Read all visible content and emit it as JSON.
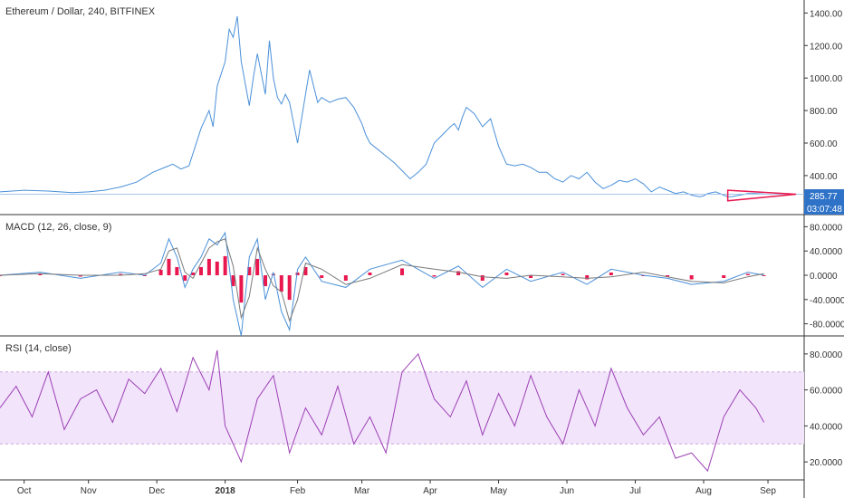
{
  "chart_data": [
    {
      "type": "line",
      "pane": "price",
      "title": "Ethereum / Dollar, 240, BITFINEX",
      "y_ticks": [
        "1400.00",
        "1200.00",
        "1000.00",
        "800.00",
        "600.00",
        "400.00"
      ],
      "ylim": [
        160,
        1480
      ],
      "last_price": "285.77",
      "countdown": "03:07:48",
      "colors": {
        "line": "#4a90d9",
        "last_badge": "#2f73c8",
        "triangle": "#e8184f"
      },
      "series": [
        {
          "x": [
            0,
            0.03,
            0.06,
            0.09,
            0.11,
            0.13,
            0.15,
            0.17,
            0.19,
            0.205,
            0.215,
            0.225,
            0.235,
            0.25,
            0.26,
            0.265,
            0.27,
            0.28,
            0.285,
            0.29,
            0.295,
            0.3,
            0.31,
            0.315,
            0.32,
            0.33,
            0.335,
            0.34,
            0.345,
            0.35,
            0.355,
            0.36,
            0.37,
            0.38,
            0.385,
            0.395,
            0.4,
            0.41,
            0.42,
            0.43,
            0.44,
            0.45,
            0.455,
            0.46,
            0.47,
            0.48,
            0.49,
            0.5,
            0.51,
            0.52,
            0.53,
            0.54,
            0.55,
            0.56,
            0.565,
            0.57,
            0.575,
            0.58,
            0.59,
            0.6,
            0.61,
            0.62,
            0.63,
            0.64,
            0.65,
            0.66,
            0.67,
            0.68,
            0.69,
            0.7,
            0.71,
            0.72,
            0.73,
            0.74,
            0.75,
            0.76,
            0.77,
            0.78,
            0.79,
            0.8,
            0.81,
            0.82,
            0.83,
            0.84,
            0.85,
            0.86,
            0.87,
            0.875,
            0.88,
            0.89,
            0.9,
            0.905,
            0.91,
            0.92,
            0.93,
            0.94,
            0.95
          ],
          "values": [
            300,
            310,
            305,
            295,
            300,
            310,
            330,
            360,
            420,
            450,
            470,
            440,
            460,
            690,
            800,
            700,
            950,
            1100,
            1300,
            1250,
            1380,
            1100,
            830,
            1000,
            1150,
            900,
            1230,
            1000,
            880,
            840,
            900,
            850,
            600,
            900,
            1050,
            850,
            880,
            850,
            870,
            880,
            820,
            720,
            650,
            600,
            560,
            520,
            480,
            430,
            380,
            420,
            470,
            600,
            650,
            700,
            720,
            680,
            760,
            820,
            780,
            700,
            750,
            580,
            470,
            460,
            470,
            450,
            420,
            420,
            380,
            360,
            400,
            380,
            420,
            360,
            320,
            340,
            370,
            360,
            380,
            350,
            300,
            330,
            310,
            290,
            300,
            280,
            270,
            275,
            290,
            300,
            280,
            270,
            270,
            280,
            290,
            290,
            286
          ]
        }
      ]
    },
    {
      "type": "line",
      "pane": "macd",
      "title": "MACD (12, 26, close, 9)",
      "y_ticks": [
        "80.0000",
        "40.0000",
        "0.0000",
        "-40.0000",
        "-80.0000"
      ],
      "ylim": [
        -100,
        100
      ],
      "colors": {
        "macd": "#4a90d9",
        "signal": "#7a7a7a",
        "histogram": "#e8184f"
      },
      "series": [
        {
          "name": "",
          "x": [
            0,
            0.05,
            0.1,
            0.15,
            0.18,
            0.2,
            0.21,
            0.22,
            0.23,
            0.24,
            0.25,
            0.26,
            0.27,
            0.28,
            0.29,
            0.3,
            0.31,
            0.32,
            0.33,
            0.34,
            0.35,
            0.36,
            0.37,
            0.38,
            0.4,
            0.43,
            0.46,
            0.5,
            0.54,
            0.57,
            0.6,
            0.63,
            0.66,
            0.7,
            0.73,
            0.76,
            0.8,
            0.83,
            0.86,
            0.9,
            0.93,
            0.95
          ],
          "values": [
            0,
            5,
            -5,
            5,
            0,
            20,
            60,
            30,
            -20,
            10,
            30,
            60,
            50,
            70,
            -40,
            -100,
            30,
            60,
            -40,
            5,
            -60,
            -90,
            10,
            30,
            -10,
            -20,
            10,
            25,
            -5,
            15,
            -20,
            10,
            -10,
            5,
            -15,
            10,
            0,
            -5,
            -15,
            -10,
            5,
            0
          ]
        }
      ]
    },
    {
      "type": "line",
      "pane": "rsi",
      "title": "RSI (14, close)",
      "y_ticks": [
        "80.0000",
        "60.0000",
        "40.0000",
        "20.0000"
      ],
      "ylim": [
        10,
        90
      ],
      "band": [
        30,
        70
      ],
      "colors": {
        "line": "#9c3fb5",
        "band": "#f2e4fb"
      },
      "series": [
        {
          "name": "",
          "x": [
            0,
            0.02,
            0.04,
            0.06,
            0.08,
            0.1,
            0.12,
            0.14,
            0.16,
            0.18,
            0.2,
            0.22,
            0.24,
            0.26,
            0.27,
            0.28,
            0.3,
            0.32,
            0.34,
            0.36,
            0.38,
            0.4,
            0.42,
            0.44,
            0.46,
            0.48,
            0.5,
            0.52,
            0.54,
            0.56,
            0.58,
            0.6,
            0.62,
            0.64,
            0.66,
            0.68,
            0.7,
            0.72,
            0.74,
            0.76,
            0.78,
            0.8,
            0.82,
            0.84,
            0.86,
            0.88,
            0.9,
            0.92,
            0.94,
            0.95
          ],
          "values": [
            50,
            62,
            45,
            70,
            38,
            55,
            60,
            42,
            66,
            58,
            72,
            48,
            78,
            60,
            82,
            40,
            20,
            55,
            68,
            25,
            50,
            35,
            62,
            30,
            45,
            25,
            70,
            80,
            55,
            45,
            65,
            35,
            58,
            40,
            68,
            45,
            30,
            60,
            40,
            72,
            50,
            35,
            45,
            22,
            25,
            15,
            45,
            60,
            50,
            42
          ]
        }
      ]
    },
    {
      "type": "time_axis",
      "labels": [
        "Oct",
        "Nov",
        "Dec",
        "2018",
        "Feb",
        "Mar",
        "Apr",
        "May",
        "Jun",
        "Jul",
        "Aug",
        "Sep"
      ],
      "bold": [
        false,
        false,
        false,
        true,
        false,
        false,
        false,
        false,
        false,
        false,
        false,
        false
      ]
    }
  ]
}
